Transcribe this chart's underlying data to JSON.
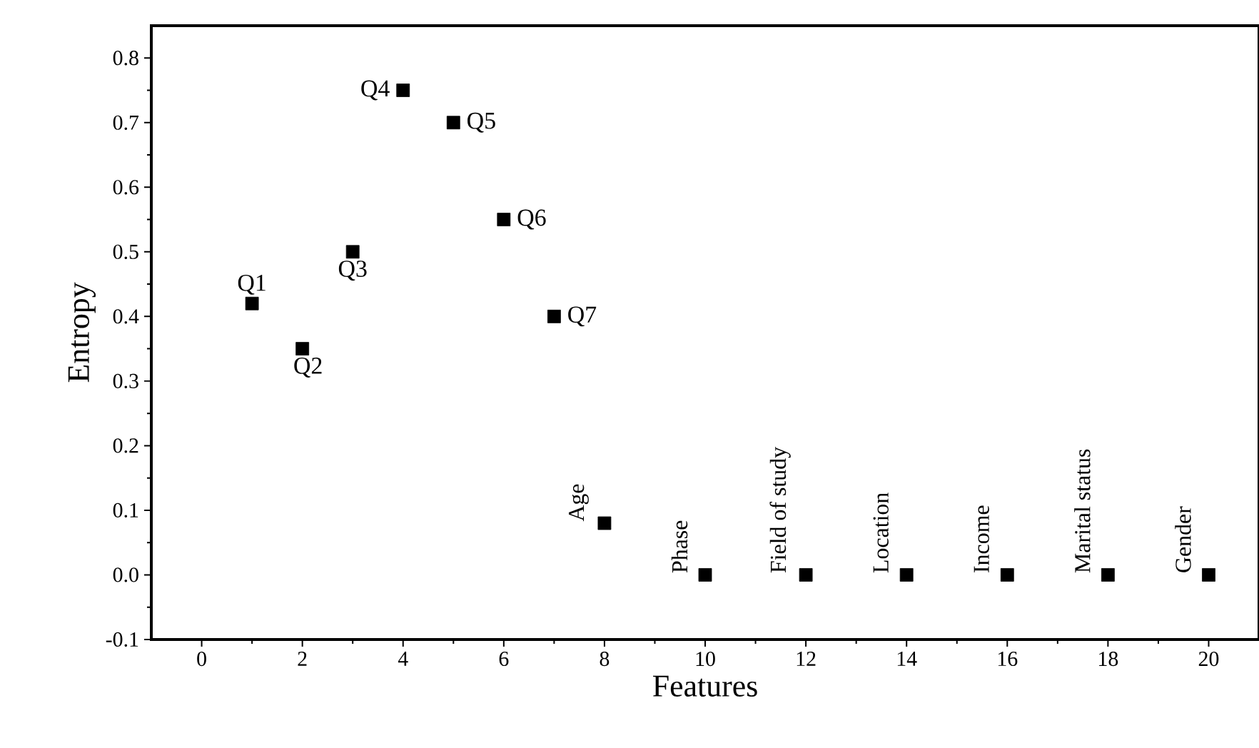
{
  "chart_data": {
    "type": "scatter",
    "xlabel": "Features",
    "ylabel": "Entropy",
    "x": [
      1,
      2,
      3,
      4,
      5,
      6,
      7,
      8,
      10,
      12,
      14,
      16,
      18,
      20
    ],
    "values": [
      0.42,
      0.35,
      0.5,
      0.75,
      0.7,
      0.55,
      0.4,
      0.08,
      0,
      0,
      0,
      0,
      0,
      0
    ],
    "color": "#000000",
    "marker": "square",
    "grid": false,
    "xlim": [
      -1,
      21
    ],
    "xticks": [
      0,
      2,
      4,
      6,
      8,
      10,
      12,
      14,
      16,
      18,
      20
    ],
    "ylim": [
      -0.1,
      0.85
    ],
    "yticks": [
      {
        "value": -0.1,
        "label": "-0.1"
      },
      {
        "value": 0,
        "label": "0.0"
      },
      0.1,
      0.2,
      0.3,
      0.4,
      0.5,
      0.6,
      0.7,
      0.8
    ],
    "annotations": [
      {
        "text": "Q1",
        "x": 1,
        "y": 0.42
      },
      {
        "text": "Q2",
        "x": 2,
        "y": 0.35
      },
      {
        "text": "Q3",
        "x": 3,
        "y": 0.5
      },
      {
        "text": "Q4",
        "x": 4,
        "y": 0.75
      },
      {
        "text": "Q5",
        "x": 5,
        "y": 0.7
      },
      {
        "text": "Q6",
        "x": 6,
        "y": 0.55
      },
      {
        "text": "Q7",
        "x": 7,
        "y": 0.4
      },
      {
        "text": "Age",
        "x": 8,
        "y": 0.08
      },
      {
        "text": "Phase",
        "x": 10,
        "y": 0
      },
      {
        "text": "Field of study",
        "x": 12,
        "y": 0
      },
      {
        "text": "Location",
        "x": 14,
        "y": 0
      },
      {
        "text": "Income",
        "x": 16,
        "y": 0
      },
      {
        "text": "Marital status",
        "x": 18,
        "y": 0
      },
      {
        "text": "Gender",
        "x": 20,
        "y": 0
      }
    ]
  }
}
